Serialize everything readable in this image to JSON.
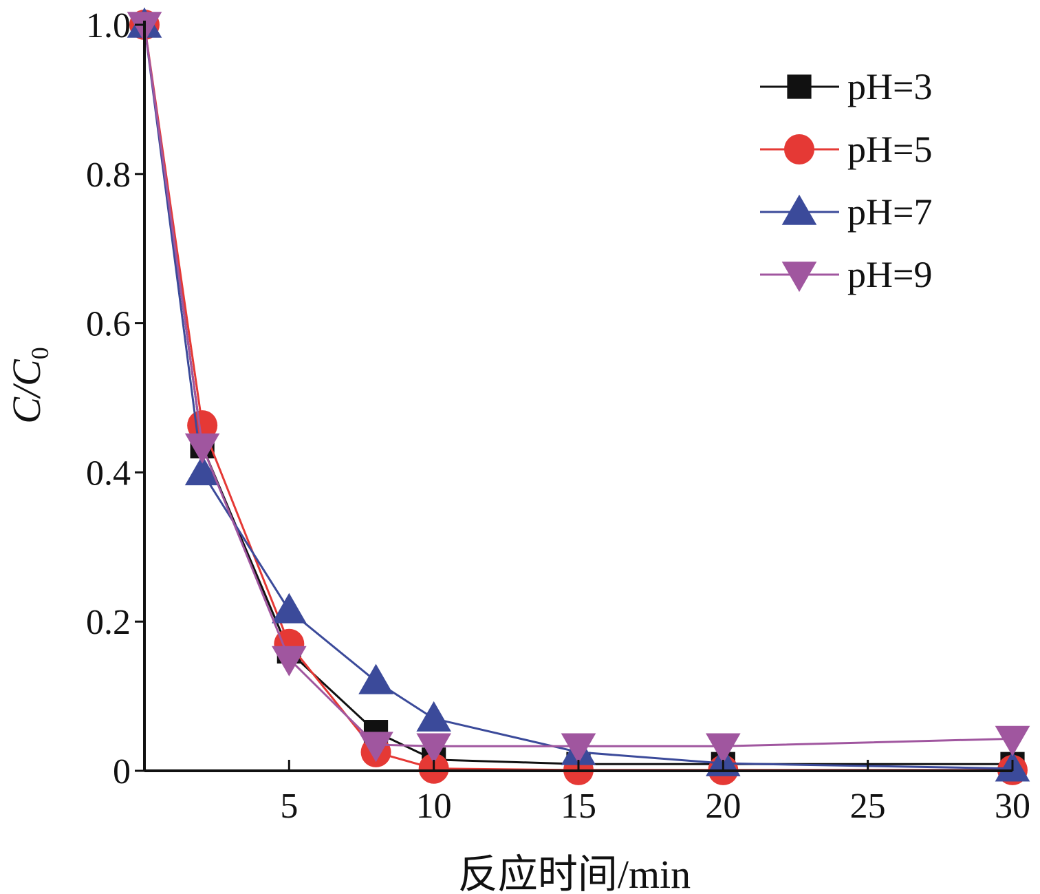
{
  "chart_data": {
    "type": "line",
    "title": "",
    "xlabel": "反应时间/min",
    "ylabel": {
      "main": "C/C",
      "sub": "0"
    },
    "xlim": [
      0,
      30
    ],
    "ylim": [
      0,
      1.0
    ],
    "x_ticks": [
      5,
      10,
      15,
      20,
      25,
      30
    ],
    "x_tick_labels": [
      "5",
      "10",
      "15",
      "20",
      "25",
      "30"
    ],
    "y_ticks": [
      0,
      0.2,
      0.4,
      0.6,
      0.8,
      1.0
    ],
    "y_tick_labels": [
      "0",
      "0.2",
      "0.4",
      "0.6",
      "0.8",
      "1.0"
    ],
    "grid": false,
    "legend_position": "top-right",
    "x": [
      0,
      2,
      5,
      8,
      10,
      15,
      20,
      30
    ],
    "series": [
      {
        "name": "pH=3",
        "color": "#111111",
        "marker": "square",
        "values": [
          1.0,
          0.435,
          0.16,
          0.052,
          0.015,
          0.009,
          0.009,
          0.009
        ]
      },
      {
        "name": "pH=5",
        "color": "#e53935",
        "marker": "circle",
        "values": [
          1.0,
          0.463,
          0.17,
          0.025,
          0.003,
          0.001,
          0.001,
          0.001
        ]
      },
      {
        "name": "pH=7",
        "color": "#3b4a9a",
        "marker": "triangle-up",
        "values": [
          1.0,
          0.4,
          0.215,
          0.12,
          0.07,
          0.025,
          0.01,
          0.003
        ]
      },
      {
        "name": "pH=9",
        "color": "#a0569f",
        "marker": "triangle-down",
        "values": [
          1.0,
          0.435,
          0.15,
          0.035,
          0.033,
          0.033,
          0.033,
          0.043
        ]
      }
    ]
  }
}
